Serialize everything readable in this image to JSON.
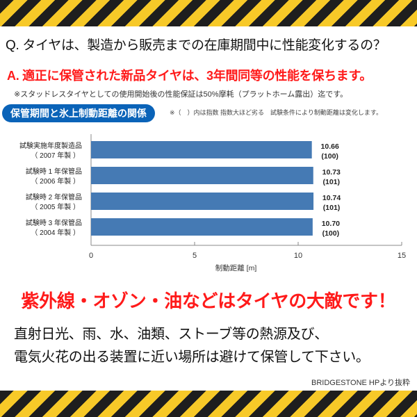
{
  "question": "Q. タイヤは、製造から販売までの在庫期間中に性能変化するの？",
  "answer": "A. 適正に保管された新品タイヤは、3年間同等の性能を保ちます。",
  "answer_note": "※スタッドレスタイヤとしての使用開始後の性能保証は50%摩耗（プラットホーム露出）迄です。",
  "chart_note": "※（　）内は指数 指数大ほど劣る　試験条件により制動距離は変化します。",
  "chart_data": {
    "type": "bar",
    "orientation": "horizontal",
    "title": "保管期間と氷上制動距離の関係",
    "categories": [
      {
        "line1": "試験実施年度製造品",
        "line2": "（ 2007 年製 ）"
      },
      {
        "line1": "試験時 1 年保管品",
        "line2": "（ 2006 年製 ）"
      },
      {
        "line1": "試験時 2 年保管品",
        "line2": "（ 2005 年製 ）"
      },
      {
        "line1": "試験時 3 年保管品",
        "line2": "（ 2004 年製 ）"
      }
    ],
    "values": [
      10.66,
      10.73,
      10.74,
      10.7
    ],
    "value_labels": [
      "10.66",
      "10.73",
      "10.74",
      "10.70"
    ],
    "index_labels": [
      "(100)",
      "(101)",
      "(101)",
      "(100)"
    ],
    "xlabel": "制動距離 [m]",
    "xlim": [
      0,
      15
    ],
    "xticks": [
      "0",
      "5",
      "10",
      "15"
    ],
    "bar_color": "#457ab4",
    "grid": false
  },
  "warning": "紫外線・オゾン・油などはタイヤの大敵です！",
  "advice_line1": "直射日光、雨、水、油類、ストーブ等の熱源及び、",
  "advice_line2": "電気火花の出る装置に近い場所は避けて保管して下さい。",
  "source": "BRIDGESTONE  HPより抜粋",
  "colors": {
    "stripe_dark": "#1e1e1e",
    "stripe_yellow": "#f7c928",
    "accent_red": "#ff1a1a",
    "title_blue": "#0a63b8"
  }
}
